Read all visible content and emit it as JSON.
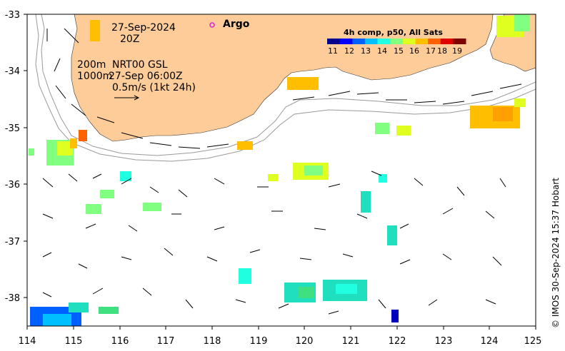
{
  "map": {
    "x_ticks": [
      "114",
      "115",
      "116",
      "117",
      "118",
      "119",
      "120",
      "121",
      "122",
      "123",
      "124",
      "125"
    ],
    "y_ticks": [
      "-33",
      "-34",
      "-35",
      "-36",
      "-37",
      "-38"
    ],
    "lon_range": [
      114,
      125
    ],
    "lat_range": [
      -38.5,
      -33
    ]
  },
  "annotations": {
    "date": "27-Sep-2024",
    "time": "20Z",
    "contours_line1": "200m",
    "contours_line2": "1000m",
    "product": "NRT00 GSL",
    "product_time": "27-Sep 06:00Z",
    "scale_text": "0.5m/s (1kt 24h)"
  },
  "legend": {
    "argo_label": "Argo",
    "colorbar_title": "4h comp, p50, All Sats",
    "colorbar_ticks": [
      "11",
      "12",
      "13",
      "14",
      "15",
      "16",
      "17",
      "18",
      "19"
    ],
    "colorbar_colors": [
      "#00008f",
      "#0000ff",
      "#0060ff",
      "#00bfff",
      "#20ffdf",
      "#80ff80",
      "#dfff20",
      "#ffbf00",
      "#ff6000",
      "#df0000",
      "#800000"
    ]
  },
  "colors": {
    "land": "#fdcc99",
    "argo_marker": "#e020e0"
  },
  "credit": "© IMOS 30-Sep-2024 15:37 Hobart"
}
